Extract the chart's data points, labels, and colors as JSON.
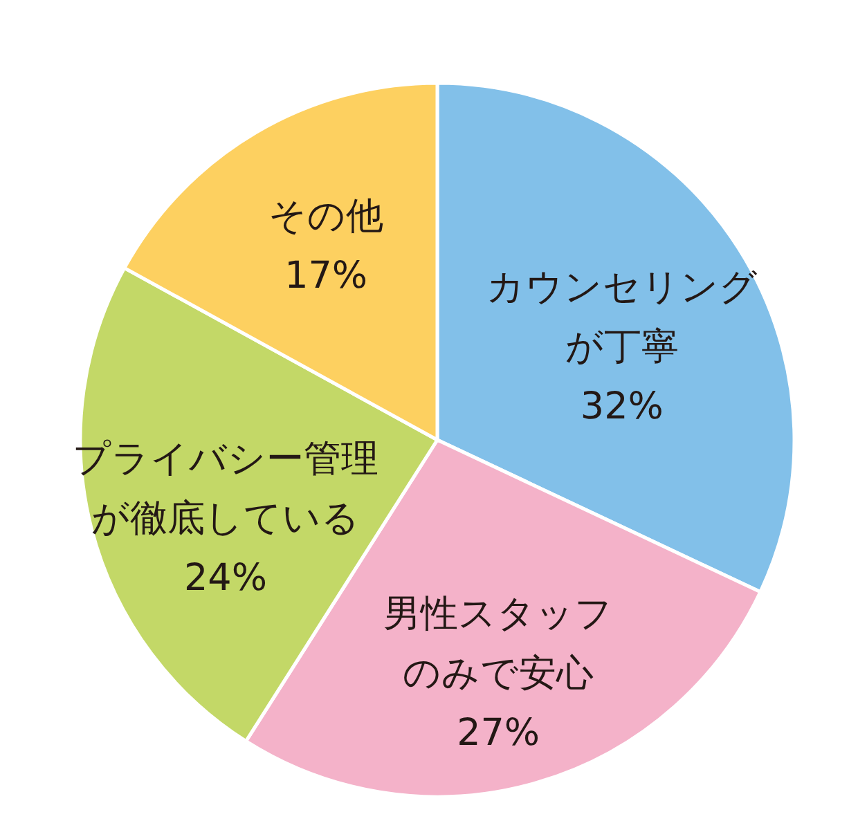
{
  "chart_data": {
    "type": "pie",
    "categories": [
      "カウンセリングが丁寧",
      "男性スタッフのみで安心",
      "プライバシー管理が徹底している",
      "その他"
    ],
    "values": [
      32,
      27,
      24,
      17
    ],
    "value_labels": [
      "32%",
      "27%",
      "24%",
      "17%"
    ],
    "colors": [
      "#82c0e9",
      "#f4b2c9",
      "#c3d867",
      "#fdd060"
    ]
  }
}
